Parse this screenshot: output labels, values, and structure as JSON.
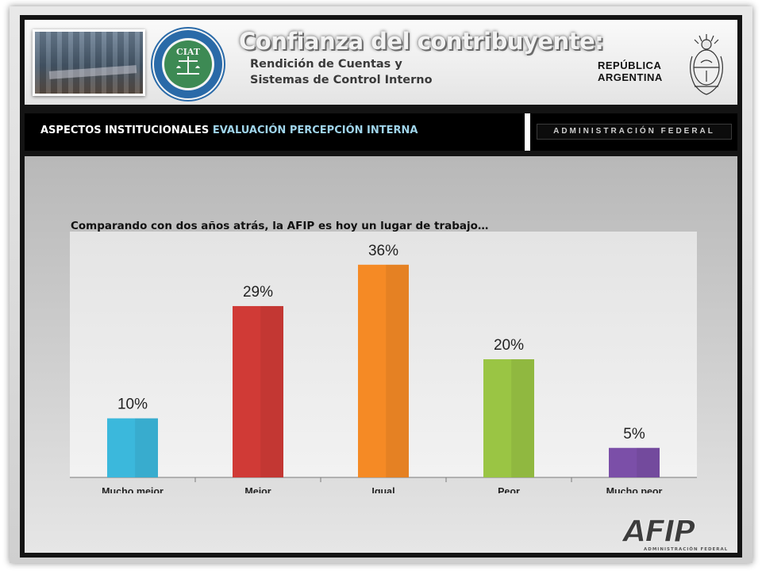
{
  "header": {
    "title": "Confianza del contribuyente:",
    "subtitle_line1": "Rendición de Cuentas y",
    "subtitle_line2": "Sistemas de Control Interno",
    "seal_text": "CIAT",
    "country_line1": "REPÚBLICA",
    "country_line2": "ARGENTINA"
  },
  "section": {
    "part1": "ASPECTOS INSTITUCIONALES",
    "part2": "EVALUACIÓN PERCEPCIÓN INTERNA",
    "admin_label": "ADMINISTRACIÓN FEDERAL"
  },
  "question": "Comparando con dos años atrás, la AFIP es hoy un lugar de trabajo…",
  "logo": {
    "name": "AFIP",
    "tagline": "ADMINISTRACIÓN FEDERAL"
  },
  "chart_data": {
    "type": "bar",
    "title": "",
    "xlabel": "",
    "ylabel": "",
    "categories": [
      "Mucho mejor",
      "Mejor",
      "Igual",
      "Peor",
      "Mucho peor"
    ],
    "values": [
      10,
      29,
      36,
      20,
      5
    ],
    "labels": [
      "10%",
      "29%",
      "36%",
      "20%",
      "5%"
    ],
    "colors": [
      "#3bb8dc",
      "#d03a36",
      "#f58a25",
      "#9ac544",
      "#7b4fa8"
    ],
    "ylim": [
      0,
      40
    ],
    "grid": false,
    "legend": "none"
  }
}
